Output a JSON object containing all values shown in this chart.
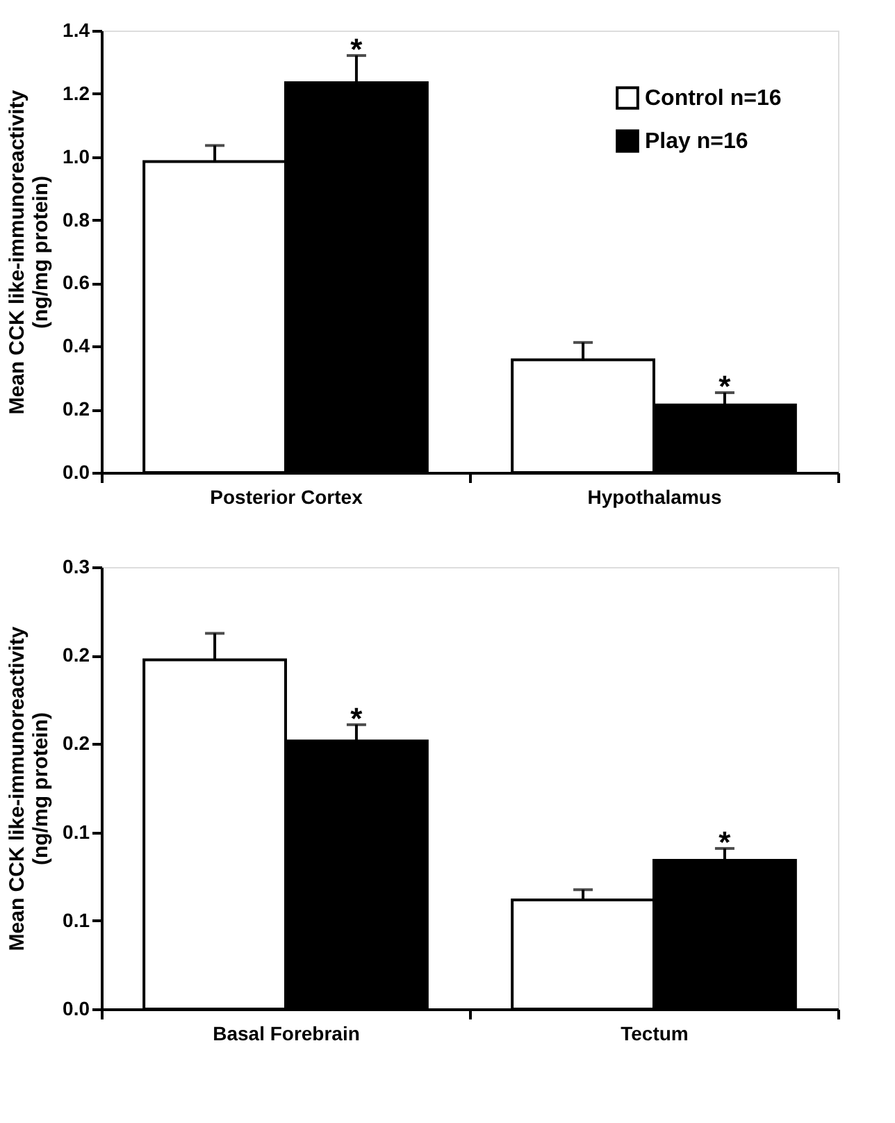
{
  "chart_data": [
    {
      "type": "bar",
      "categories": [
        "Posterior Cortex",
        "Hypothalamus"
      ],
      "ylabel": "Mean CCK like-immunoreactivity\n(ng/mg protein)",
      "ylim": [
        0,
        1.4
      ],
      "yticks": [
        {
          "value": 0,
          "label": "0.0"
        },
        0.2,
        0.4,
        0.6,
        0.8,
        {
          "value": 1,
          "label": "1.0"
        },
        1.2,
        1.4
      ],
      "legend": "top right",
      "series": [
        {
          "name": "Control n=16",
          "color": "#ffffff",
          "values": [
            0.985,
            0.357
          ],
          "errors": [
            [
              0.985,
              1.036
            ],
            [
              0.357,
              0.412
            ]
          ]
        },
        {
          "name": "Play n=16",
          "color": "#000000",
          "values": [
            1.235,
            0.214
          ],
          "errors": [
            [
              1.235,
              1.321
            ],
            [
              0.214,
              0.253
            ]
          ]
        }
      ],
      "annotations": [
        "*",
        "*"
      ]
    },
    {
      "type": "bar",
      "categories": [
        "Basal Forebrain",
        "Tectum"
      ],
      "ylabel": "Mean CCK like-immunoreactivity\n(ng/mg protein)",
      "ylim": [
        0,
        0.3
      ],
      "yticks": [
        {
          "value": 0,
          "label": "0.0"
        },
        {
          "value": 0.06,
          "label": "0.1"
        },
        {
          "value": 0.12,
          "label": "0.1"
        },
        {
          "value": 0.18,
          "label": "0.2"
        },
        {
          "value": 0.24,
          "label": "0.2"
        },
        {
          "value": 0.3,
          "label": "0.3"
        }
      ],
      "series": [
        {
          "color": "#ffffff",
          "values": [
            0.237,
            0.074
          ],
          "errors": [
            [
              0.237,
              0.255
            ],
            [
              0.074,
              0.081
            ]
          ]
        },
        {
          "color": "#000000",
          "values": [
            0.182,
            0.101
          ],
          "errors": [
            [
              0.182,
              0.193
            ],
            [
              0.101,
              0.109
            ]
          ]
        }
      ],
      "annotations": [
        "*",
        "*"
      ]
    }
  ]
}
